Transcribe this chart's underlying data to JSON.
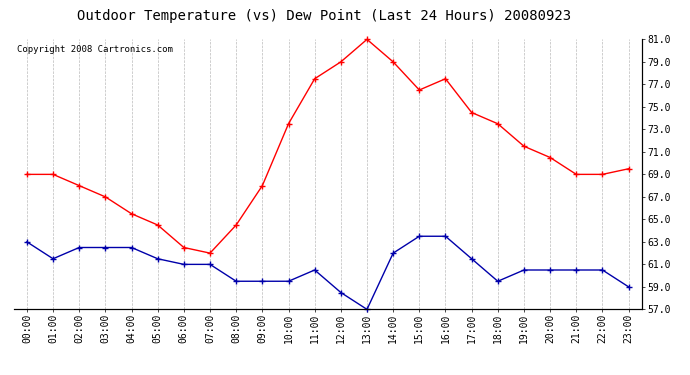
{
  "title": "Outdoor Temperature (vs) Dew Point (Last 24 Hours) 20080923",
  "copyright_text": "Copyright 2008 Cartronics.com",
  "hours": [
    "00:00",
    "01:00",
    "02:00",
    "03:00",
    "04:00",
    "05:00",
    "06:00",
    "07:00",
    "08:00",
    "09:00",
    "10:00",
    "11:00",
    "12:00",
    "13:00",
    "14:00",
    "15:00",
    "16:00",
    "17:00",
    "18:00",
    "19:00",
    "20:00",
    "21:00",
    "22:00",
    "23:00"
  ],
  "temp": [
    69.0,
    69.0,
    68.0,
    67.0,
    65.5,
    64.5,
    62.5,
    62.0,
    64.5,
    68.0,
    73.5,
    77.5,
    79.0,
    81.0,
    79.0,
    76.5,
    77.5,
    74.5,
    73.5,
    71.5,
    70.5,
    69.0,
    69.0,
    69.5
  ],
  "dew": [
    63.0,
    61.5,
    62.5,
    62.5,
    62.5,
    61.5,
    61.0,
    61.0,
    59.5,
    59.5,
    59.5,
    60.5,
    58.5,
    57.0,
    62.0,
    63.5,
    63.5,
    61.5,
    59.5,
    60.5,
    60.5,
    60.5,
    60.5,
    59.0
  ],
  "temp_color": "#ff0000",
  "dew_color": "#0000aa",
  "bg_color": "#ffffff",
  "grid_color": "#bbbbbb",
  "ylim_min": 57.0,
  "ylim_max": 81.0,
  "ytick_step": 2.0,
  "title_fontsize": 10,
  "copyright_fontsize": 6.5,
  "tick_fontsize": 7,
  "marker": "+",
  "marker_size": 5,
  "linewidth": 1.0
}
